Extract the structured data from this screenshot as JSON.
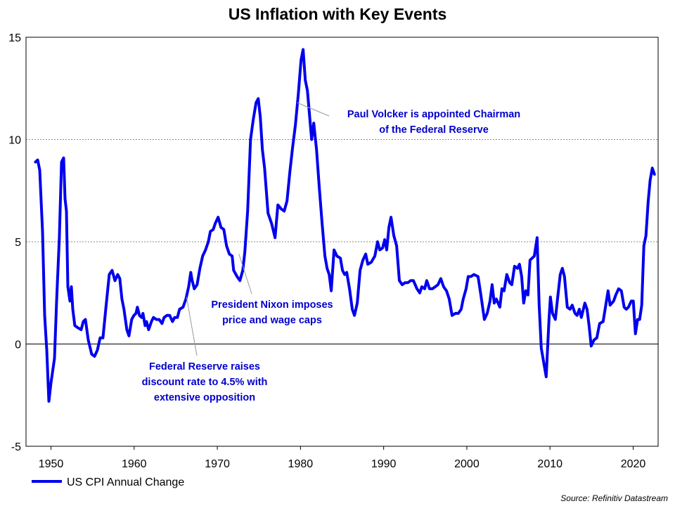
{
  "chart_data": {
    "type": "line",
    "title": "US Inflation with Key Events",
    "xlabel": "",
    "ylabel": "",
    "xlim": [
      1947,
      2023
    ],
    "ylim": [
      -5,
      15
    ],
    "xticks": [
      1950,
      1960,
      1970,
      1980,
      1990,
      2000,
      2010,
      2020
    ],
    "xtick_labels": [
      "1950",
      "1960",
      "1970",
      "1980",
      "1990",
      "2000",
      "2010",
      "2020"
    ],
    "yticks": [
      -5,
      0,
      5,
      10,
      15
    ],
    "ytick_labels": [
      "-5",
      "0",
      "5",
      "10",
      "15"
    ],
    "grid": "horizontal dashed at 5 and 10; solid zero line",
    "legend_placement": "bottom-left",
    "series": [
      {
        "name": "US CPI Annual Change",
        "color": "#0000ee",
        "points": [
          [
            1948.14,
            8.9
          ],
          [
            1948.4,
            9.0
          ],
          [
            1948.65,
            8.5
          ],
          [
            1948.99,
            5.5
          ],
          [
            1949.24,
            1.4
          ],
          [
            1949.49,
            -0.3
          ],
          [
            1949.75,
            -2.8
          ],
          [
            1950.0,
            -1.9
          ],
          [
            1950.42,
            -0.7
          ],
          [
            1950.68,
            2.1
          ],
          [
            1951.01,
            5.2
          ],
          [
            1951.27,
            8.9
          ],
          [
            1951.52,
            9.1
          ],
          [
            1951.69,
            7.1
          ],
          [
            1951.86,
            6.5
          ],
          [
            1952.03,
            2.8
          ],
          [
            1952.28,
            2.1
          ],
          [
            1952.45,
            2.8
          ],
          [
            1952.62,
            1.7
          ],
          [
            1952.87,
            0.9
          ],
          [
            1953.21,
            0.8
          ],
          [
            1953.63,
            0.7
          ],
          [
            1953.89,
            1.1
          ],
          [
            1954.14,
            1.2
          ],
          [
            1954.48,
            0.2
          ],
          [
            1954.9,
            -0.5
          ],
          [
            1955.24,
            -0.6
          ],
          [
            1955.58,
            -0.3
          ],
          [
            1955.91,
            0.3
          ],
          [
            1956.25,
            0.3
          ],
          [
            1956.59,
            1.7
          ],
          [
            1957.01,
            3.4
          ],
          [
            1957.35,
            3.6
          ],
          [
            1957.69,
            3.1
          ],
          [
            1958.02,
            3.4
          ],
          [
            1958.28,
            3.2
          ],
          [
            1958.53,
            2.2
          ],
          [
            1958.78,
            1.7
          ],
          [
            1959.12,
            0.7
          ],
          [
            1959.38,
            0.4
          ],
          [
            1959.71,
            1.2
          ],
          [
            1959.97,
            1.4
          ],
          [
            1960.22,
            1.5
          ],
          [
            1960.39,
            1.8
          ],
          [
            1960.64,
            1.4
          ],
          [
            1960.9,
            1.3
          ],
          [
            1961.06,
            1.5
          ],
          [
            1961.32,
            0.9
          ],
          [
            1961.49,
            1.1
          ],
          [
            1961.74,
            0.7
          ],
          [
            1962.08,
            1.1
          ],
          [
            1962.33,
            1.3
          ],
          [
            1962.67,
            1.2
          ],
          [
            1963.01,
            1.2
          ],
          [
            1963.35,
            1.0
          ],
          [
            1963.6,
            1.3
          ],
          [
            1963.94,
            1.4
          ],
          [
            1964.27,
            1.4
          ],
          [
            1964.61,
            1.1
          ],
          [
            1964.87,
            1.3
          ],
          [
            1965.2,
            1.3
          ],
          [
            1965.46,
            1.7
          ],
          [
            1965.88,
            1.8
          ],
          [
            1966.22,
            2.2
          ],
          [
            1966.55,
            2.8
          ],
          [
            1966.81,
            3.5
          ],
          [
            1966.98,
            3.1
          ],
          [
            1967.23,
            2.7
          ],
          [
            1967.57,
            2.9
          ],
          [
            1967.91,
            3.7
          ],
          [
            1968.24,
            4.3
          ],
          [
            1968.58,
            4.6
          ],
          [
            1968.92,
            5.0
          ],
          [
            1969.17,
            5.5
          ],
          [
            1969.51,
            5.6
          ],
          [
            1969.76,
            5.9
          ],
          [
            1970.1,
            6.2
          ],
          [
            1970.44,
            5.7
          ],
          [
            1970.78,
            5.6
          ],
          [
            1971.11,
            4.8
          ],
          [
            1971.45,
            4.4
          ],
          [
            1971.79,
            4.3
          ],
          [
            1971.96,
            3.6
          ],
          [
            1972.38,
            3.3
          ],
          [
            1972.72,
            3.1
          ],
          [
            1973.06,
            3.6
          ],
          [
            1973.31,
            4.5
          ],
          [
            1973.65,
            6.5
          ],
          [
            1973.99,
            10.0
          ],
          [
            1974.33,
            11.0
          ],
          [
            1974.66,
            11.8
          ],
          [
            1974.92,
            12.0
          ],
          [
            1975.17,
            11.1
          ],
          [
            1975.42,
            9.5
          ],
          [
            1975.68,
            8.6
          ],
          [
            1976.1,
            6.4
          ],
          [
            1976.52,
            5.9
          ],
          [
            1976.94,
            5.2
          ],
          [
            1977.28,
            6.8
          ],
          [
            1977.7,
            6.6
          ],
          [
            1978.04,
            6.5
          ],
          [
            1978.38,
            7.0
          ],
          [
            1978.72,
            8.4
          ],
          [
            1979.05,
            9.6
          ],
          [
            1979.39,
            10.7
          ],
          [
            1979.73,
            12.2
          ],
          [
            1980.07,
            13.9
          ],
          [
            1980.32,
            14.4
          ],
          [
            1980.58,
            12.9
          ],
          [
            1980.83,
            12.4
          ],
          [
            1981.17,
            10.8
          ],
          [
            1981.34,
            10.0
          ],
          [
            1981.59,
            10.8
          ],
          [
            1981.93,
            9.5
          ],
          [
            1982.27,
            7.6
          ],
          [
            1982.6,
            5.9
          ],
          [
            1982.94,
            4.3
          ],
          [
            1983.2,
            3.7
          ],
          [
            1983.45,
            3.4
          ],
          [
            1983.7,
            2.6
          ],
          [
            1984.04,
            4.6
          ],
          [
            1984.38,
            4.3
          ],
          [
            1984.8,
            4.2
          ],
          [
            1985.05,
            3.6
          ],
          [
            1985.31,
            3.4
          ],
          [
            1985.56,
            3.5
          ],
          [
            1985.9,
            2.7
          ],
          [
            1986.23,
            1.7
          ],
          [
            1986.49,
            1.4
          ],
          [
            1986.83,
            2.0
          ],
          [
            1987.16,
            3.6
          ],
          [
            1987.5,
            4.1
          ],
          [
            1987.84,
            4.4
          ],
          [
            1988.09,
            3.9
          ],
          [
            1988.51,
            4.0
          ],
          [
            1988.94,
            4.3
          ],
          [
            1989.27,
            5.0
          ],
          [
            1989.53,
            4.6
          ],
          [
            1989.87,
            4.7
          ],
          [
            1990.12,
            5.1
          ],
          [
            1990.37,
            4.6
          ],
          [
            1990.63,
            5.7
          ],
          [
            1990.88,
            6.2
          ],
          [
            1991.22,
            5.3
          ],
          [
            1991.56,
            4.8
          ],
          [
            1991.89,
            3.1
          ],
          [
            1992.23,
            2.9
          ],
          [
            1992.57,
            3.0
          ],
          [
            1992.91,
            3.0
          ],
          [
            1993.24,
            3.1
          ],
          [
            1993.58,
            3.1
          ],
          [
            1994.0,
            2.7
          ],
          [
            1994.34,
            2.5
          ],
          [
            1994.59,
            2.8
          ],
          [
            1994.93,
            2.7
          ],
          [
            1995.18,
            3.1
          ],
          [
            1995.52,
            2.7
          ],
          [
            1995.86,
            2.7
          ],
          [
            1996.2,
            2.8
          ],
          [
            1996.53,
            2.9
          ],
          [
            1996.87,
            3.2
          ],
          [
            1997.21,
            2.8
          ],
          [
            1997.55,
            2.6
          ],
          [
            1997.88,
            2.2
          ],
          [
            1998.22,
            1.4
          ],
          [
            1998.64,
            1.5
          ],
          [
            1998.98,
            1.5
          ],
          [
            1999.32,
            1.7
          ],
          [
            1999.57,
            2.2
          ],
          [
            1999.91,
            2.7
          ],
          [
            2000.17,
            3.3
          ],
          [
            2000.5,
            3.3
          ],
          [
            2000.84,
            3.4
          ],
          [
            2001.35,
            3.3
          ],
          [
            2001.69,
            2.4
          ],
          [
            2002.11,
            1.2
          ],
          [
            2002.45,
            1.5
          ],
          [
            2002.79,
            2.1
          ],
          [
            2003.04,
            2.9
          ],
          [
            2003.29,
            2.0
          ],
          [
            2003.55,
            2.2
          ],
          [
            2003.97,
            1.8
          ],
          [
            2004.22,
            2.7
          ],
          [
            2004.48,
            2.6
          ],
          [
            2004.81,
            3.4
          ],
          [
            2005.15,
            3.0
          ],
          [
            2005.41,
            2.9
          ],
          [
            2005.74,
            3.8
          ],
          [
            2006.08,
            3.7
          ],
          [
            2006.33,
            3.9
          ],
          [
            2006.59,
            3.3
          ],
          [
            2006.84,
            2.0
          ],
          [
            2007.09,
            2.6
          ],
          [
            2007.35,
            2.4
          ],
          [
            2007.6,
            4.1
          ],
          [
            2008.11,
            4.3
          ],
          [
            2008.45,
            5.2
          ],
          [
            2008.7,
            1.9
          ],
          [
            2008.95,
            -0.2
          ],
          [
            2009.29,
            -1.0
          ],
          [
            2009.54,
            -1.6
          ],
          [
            2009.88,
            1.2
          ],
          [
            2010.05,
            2.3
          ],
          [
            2010.3,
            1.5
          ],
          [
            2010.64,
            1.2
          ],
          [
            2010.9,
            2.2
          ],
          [
            2011.23,
            3.4
          ],
          [
            2011.49,
            3.7
          ],
          [
            2011.74,
            3.3
          ],
          [
            2012.08,
            1.8
          ],
          [
            2012.42,
            1.7
          ],
          [
            2012.67,
            1.9
          ],
          [
            2013.01,
            1.5
          ],
          [
            2013.26,
            1.4
          ],
          [
            2013.52,
            1.7
          ],
          [
            2013.77,
            1.3
          ],
          [
            2014.19,
            2.0
          ],
          [
            2014.45,
            1.7
          ],
          [
            2014.7,
            0.9
          ],
          [
            2014.95,
            -0.1
          ],
          [
            2015.29,
            0.2
          ],
          [
            2015.63,
            0.3
          ],
          [
            2015.97,
            1.0
          ],
          [
            2016.39,
            1.1
          ],
          [
            2016.98,
            2.6
          ],
          [
            2017.23,
            1.9
          ],
          [
            2017.65,
            2.1
          ],
          [
            2017.91,
            2.4
          ],
          [
            2018.25,
            2.7
          ],
          [
            2018.58,
            2.6
          ],
          [
            2018.92,
            1.8
          ],
          [
            2019.17,
            1.7
          ],
          [
            2019.43,
            1.8
          ],
          [
            2019.77,
            2.1
          ],
          [
            2020.02,
            2.1
          ],
          [
            2020.27,
            0.5
          ],
          [
            2020.53,
            1.2
          ],
          [
            2020.78,
            1.2
          ],
          [
            2021.03,
            1.9
          ],
          [
            2021.28,
            4.8
          ],
          [
            2021.54,
            5.3
          ],
          [
            2021.79,
            6.9
          ],
          [
            2022.04,
            8.0
          ],
          [
            2022.3,
            8.6
          ],
          [
            2022.55,
            8.3
          ]
        ]
      }
    ],
    "annotations": [
      {
        "lines": [
          "Paul Volcker is appointed Chairman",
          "of the Federal Reserve"
        ],
        "points_to": [
          1979.6,
          11.8
        ]
      },
      {
        "lines": [
          "President Nixon imposes",
          "price and wage caps"
        ],
        "points_to": [
          1972.6,
          4.4
        ]
      },
      {
        "lines": [
          "Federal Reserve raises",
          "discount rate to 4.5% with",
          "extensive opposition"
        ],
        "points_to": [
          1966.3,
          2.3
        ]
      }
    ],
    "source": "Source: Refinitiv Datastream"
  }
}
